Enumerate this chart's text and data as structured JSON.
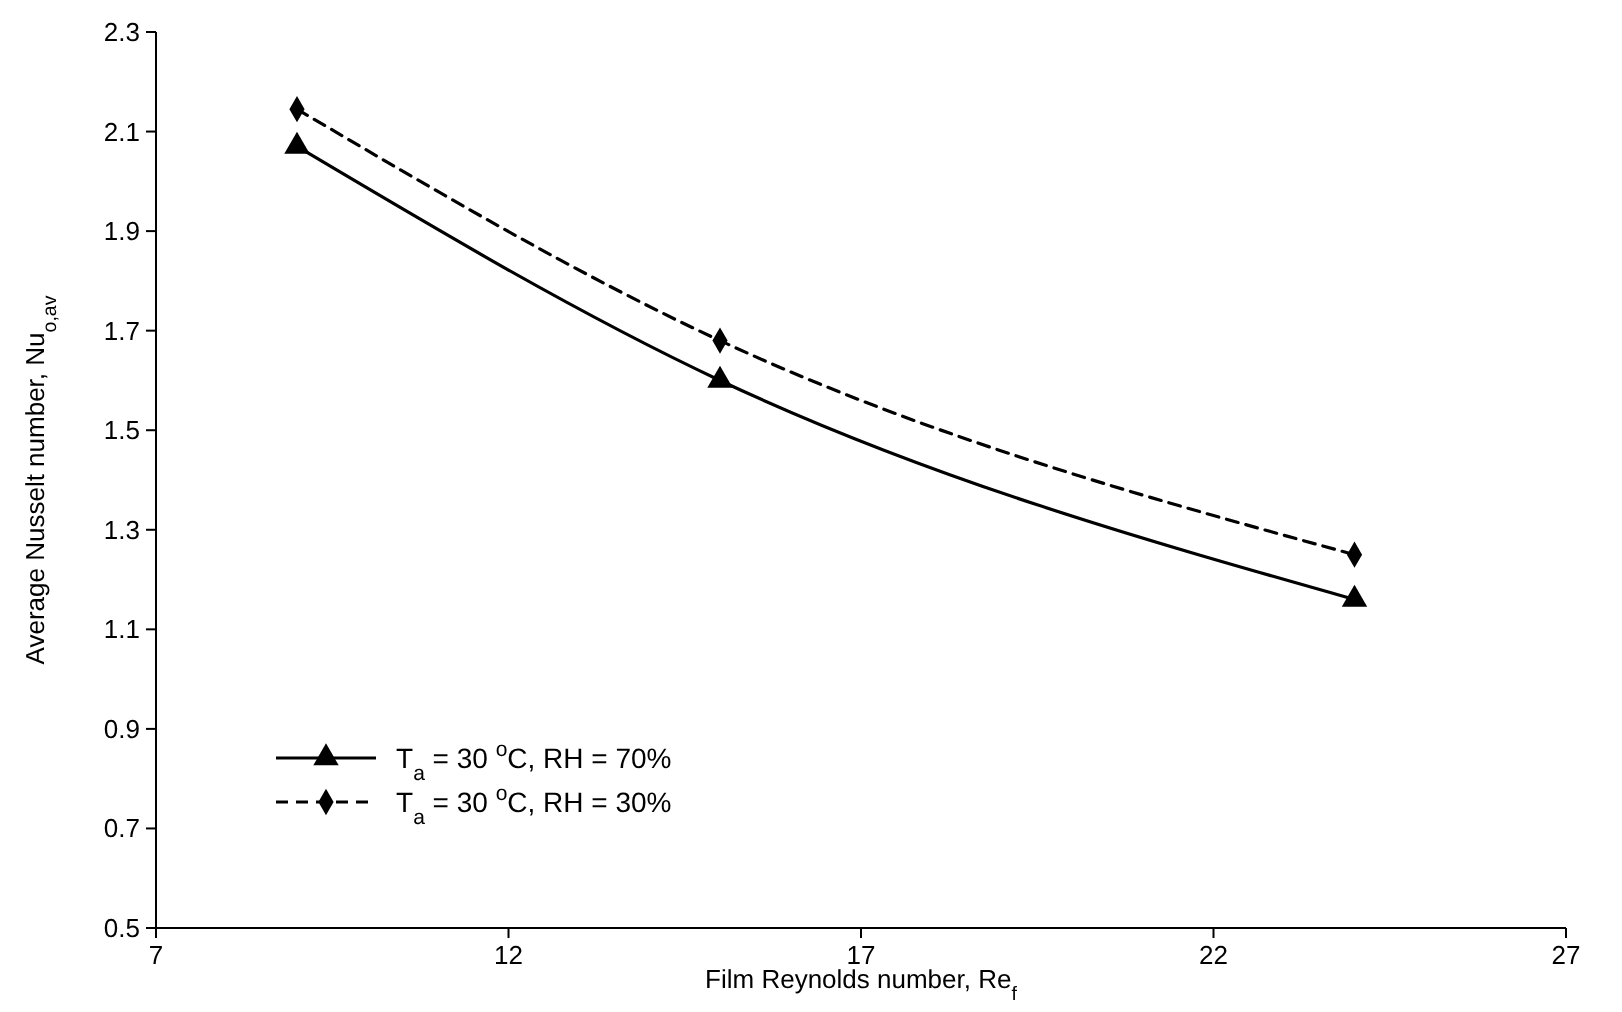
{
  "chart_data": {
    "type": "line",
    "xlabel": "Film Reynolds number, Re$_{f}$",
    "ylabel": "Average Nusselt number, Nu$_{o,av}$",
    "xlim": [
      7,
      27
    ],
    "xticks": [
      7,
      12,
      17,
      22,
      27
    ],
    "ylim": [
      0.5,
      2.3
    ],
    "yticks": [
      {
        "value": 0.5,
        "label": "0.5"
      },
      {
        "value": 0.7,
        "label": "0.7"
      },
      {
        "value": 0.9,
        "label": "0.9"
      },
      {
        "value": 1.1,
        "label": "1.1"
      },
      {
        "value": 1.3,
        "label": "1.3"
      },
      {
        "value": 1.5,
        "label": "1.5"
      },
      {
        "value": 1.7,
        "label": "1.7"
      },
      {
        "value": 1.9,
        "label": "1.9"
      },
      {
        "value": 2.1,
        "label": "2.1"
      },
      {
        "value": 2.3,
        "label": "2.3"
      }
    ],
    "x": [
      9,
      15,
      24
    ],
    "legend": "bottom left",
    "grid": false,
    "series": [
      {
        "name": "T$_{a}$ = 30 $^{o}$C, RH = 70%",
        "color": "#000000",
        "values": [
          2.07,
          1.6,
          1.16
        ],
        "marker": "triangle",
        "line_style": "solid"
      },
      {
        "name": "T$_{a}$ = 30 $^{o}$C, RH = 30%",
        "color": "#000000",
        "values": [
          2.145,
          1.68,
          1.25
        ],
        "marker": "diamond",
        "line_style": "dashed"
      }
    ]
  }
}
